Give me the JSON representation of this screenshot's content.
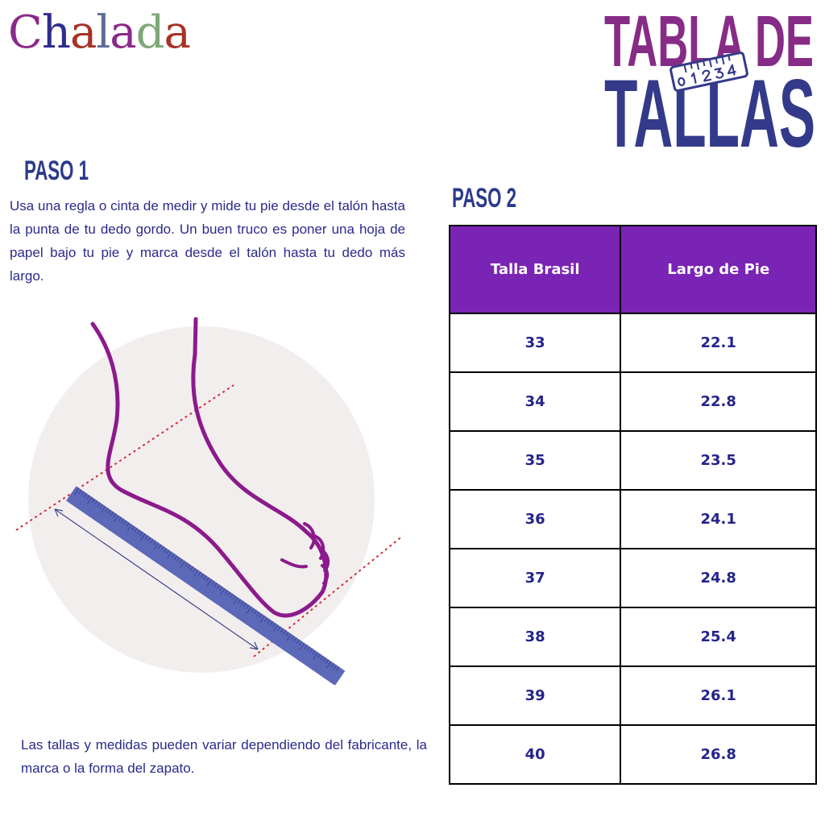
{
  "logo": {
    "text": "Chalada",
    "letters": [
      "C",
      "h",
      "a",
      "l",
      "a",
      "d",
      "a"
    ],
    "colors": [
      "#8a2a8a",
      "#2e2e8a",
      "#a83228",
      "#5e6e9a",
      "#8a2a8a",
      "#7ea878",
      "#a83228"
    ]
  },
  "title": {
    "line1": "TABLA DE",
    "line2": "TALLAS",
    "ruler_numbers": [
      "0",
      "1",
      "2",
      "3",
      "4"
    ]
  },
  "step1": {
    "heading": "PASO 1",
    "text": "Usa una regla o cinta de medir y mide tu pie desde el talón hasta la punta de tu dedo gordo. Un buen truco es poner una hoja de papel bajo tu pie y marca desde el talón hasta tu dedo más largo."
  },
  "note": "Las tallas y medidas pueden variar dependiendo del fabricante, la marca o la forma del zapato.",
  "step2": {
    "heading": "PASO 2",
    "table": {
      "headers": [
        "Talla Brasil",
        "Largo de Pie"
      ],
      "rows": [
        [
          "33",
          "22.1"
        ],
        [
          "34",
          "22.8"
        ],
        [
          "35",
          "23.5"
        ],
        [
          "36",
          "24.1"
        ],
        [
          "37",
          "24.8"
        ],
        [
          "38",
          "25.4"
        ],
        [
          "39",
          "26.1"
        ],
        [
          "40",
          "26.8"
        ]
      ]
    }
  },
  "colors": {
    "header_bg": "#7a24b6",
    "cell_text": "#24248c",
    "heading": "#2b3a8c",
    "foot": "#8c1a8c",
    "ruler": "#5c68b8",
    "guide": "#d0303a"
  }
}
